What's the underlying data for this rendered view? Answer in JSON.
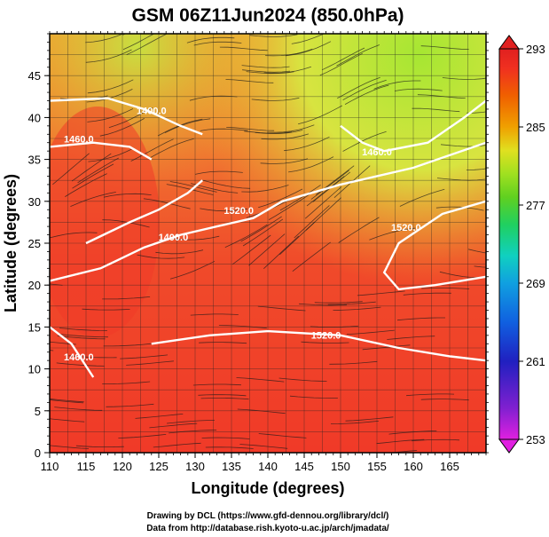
{
  "chart_data": {
    "type": "heatmap",
    "title": "GSM 06Z11Jun2024 (850.0hPa)",
    "xlabel": "Longitude (degrees)",
    "ylabel": "Latitude  (degrees)",
    "xlim": [
      110,
      170
    ],
    "ylim": [
      0,
      50
    ],
    "x_ticks": [
      "110",
      "115",
      "120",
      "125",
      "130",
      "135",
      "140",
      "145",
      "150",
      "155",
      "160",
      "165"
    ],
    "y_ticks": [
      "0",
      "5",
      "10",
      "15",
      "20",
      "25",
      "30",
      "35",
      "40",
      "45"
    ],
    "grid": true,
    "colorbar": {
      "min": 253,
      "max": 293,
      "ticks": [
        "293",
        "285",
        "277",
        "269",
        "261",
        "253"
      ],
      "colors": [
        "#e020e0",
        "#8020d0",
        "#2020c0",
        "#1060e0",
        "#10a0e0",
        "#10d0c0",
        "#20d060",
        "#60d020",
        "#a0e020",
        "#e0e020",
        "#f0a000",
        "#f06000",
        "#f03020",
        "#e02020"
      ]
    },
    "contour_labels": [
      "1400.0",
      "1460.0",
      "1400.0",
      "1520.0",
      "1460.0",
      "1520.0",
      "1520.0",
      "1460.0"
    ]
  },
  "credits": {
    "line1": "Drawing by DCL (https://www.gfd-dennou.org/library/dcl/)",
    "line2": "Data from http://database.rish.kyoto-u.ac.jp/arch/jmadata/"
  }
}
